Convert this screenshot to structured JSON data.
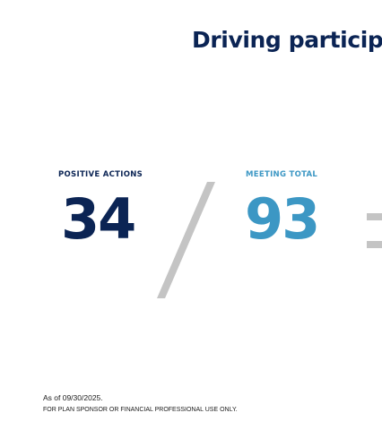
{
  "headline": "Driving particip",
  "stats": {
    "positive_actions": {
      "label": "POSITIVE ACTIONS",
      "value": "34",
      "color": "#0b2454"
    },
    "meeting_total": {
      "label": "MEETING TOTAL",
      "value": "93",
      "color": "#3c97c4"
    }
  },
  "separator_icons": {
    "divide": "slash-icon",
    "equals": "equals-icon",
    "color": "#c4c4c4"
  },
  "footer": {
    "as_of": "As of 09/30/2025.",
    "disclaimer": "FOR PLAN SPONSOR OR FINANCIAL PROFESSIONAL USE ONLY."
  }
}
